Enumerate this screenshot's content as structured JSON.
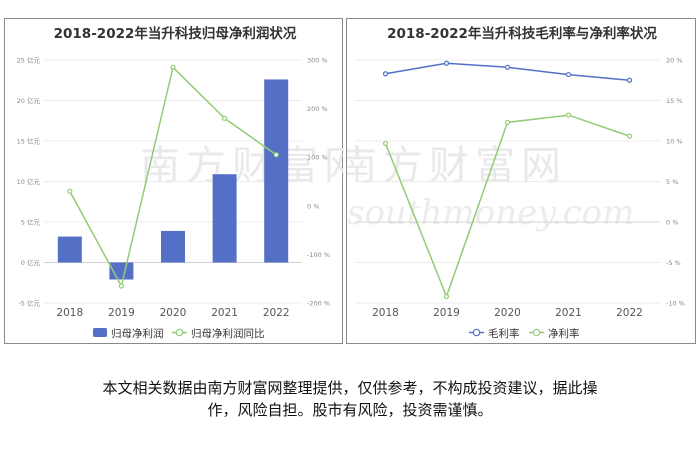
{
  "chart_data": [
    {
      "type": "bar",
      "title": "2018-2022年当升科技归母净利润状况",
      "categories": [
        "2018",
        "2019",
        "2020",
        "2021",
        "2022"
      ],
      "series": [
        {
          "name": "归母净利润",
          "type": "bar",
          "axis": "left",
          "values": [
            3.2,
            -2.1,
            3.9,
            10.9,
            22.6
          ],
          "color": "#5470c6"
        },
        {
          "name": "归母净利润同比",
          "type": "line",
          "axis": "right",
          "values": [
            30,
            -165,
            285,
            180,
            105
          ],
          "color": "#91cc75"
        }
      ],
      "y_left": {
        "ticks": [
          "-5 亿元",
          "0 亿元",
          "5 亿元",
          "10 亿元",
          "15 亿元",
          "20 亿元",
          "25 亿元"
        ],
        "ylim": [
          -5,
          25
        ]
      },
      "y_right": {
        "ticks": [
          "-200 %",
          "-100 %",
          "0 %",
          "100 %",
          "200 %",
          "300 %"
        ],
        "ylim": [
          -200,
          300
        ]
      },
      "legend": "bottom"
    },
    {
      "type": "line",
      "title": "2018-2022年当升科技毛利率与净利率状况",
      "categories": [
        "2018",
        "2019",
        "2020",
        "2021",
        "2022"
      ],
      "series": [
        {
          "name": "毛利率",
          "values": [
            18.3,
            19.6,
            19.1,
            18.2,
            17.5
          ],
          "color": "#5470c6"
        },
        {
          "name": "净利率",
          "values": [
            9.7,
            -9.2,
            12.3,
            13.2,
            10.6
          ],
          "color": "#91cc75"
        }
      ],
      "y_right": {
        "ticks": [
          "-10 %",
          "-5 %",
          "0 %",
          "5 %",
          "10 %",
          "15 %",
          "20 %"
        ],
        "ylim": [
          -10,
          20
        ]
      },
      "legend": "bottom"
    }
  ],
  "watermark": {
    "cn": "南方财富网",
    "en": "southmoney.com"
  },
  "disclaimer": {
    "line1": "本文相关数据由南方财富网整理提供，仅供参考，不构成投资建议，据此操",
    "line2": "作，风险自担。股市有风险，投资需谨慎。"
  }
}
